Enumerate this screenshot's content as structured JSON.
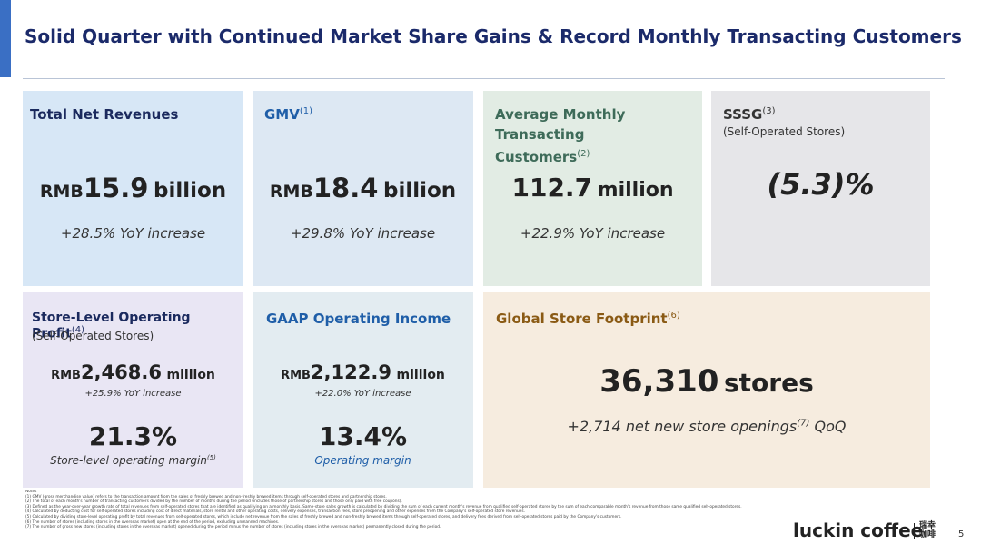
{
  "header": {
    "title": "Solid Quarter with Continued Market Share Gains & Record Monthly Transacting Customers"
  },
  "cards": [
    {
      "title": "Total Net Revenues",
      "value": {
        "prefix": "RMB",
        "number": "15.9",
        "unit": "billion"
      },
      "change": "+28.5% YoY increase"
    },
    {
      "title": "GMV",
      "note": "(1)",
      "value": {
        "prefix": "RMB",
        "number": "18.4",
        "unit": "billion"
      },
      "change": "+29.8% YoY increase"
    },
    {
      "title": "Average Monthly Transacting Customers",
      "note": "(2)",
      "value": {
        "number": "112.7",
        "unit": "million"
      },
      "change": "+22.9% YoY increase"
    },
    {
      "title": "SSSG",
      "note": "(3)",
      "subtitle": "(Self-Operated Stores)",
      "value": {
        "number": "(5.3)%"
      }
    },
    {
      "title": "Store-Level Operating Profit",
      "note": "(4)",
      "subtitle": "(Self-Operated Stores)",
      "value": {
        "prefix": "RMB",
        "number": "2,468.6",
        "unit": "million"
      },
      "change": "+25.9% YoY increase",
      "margin": {
        "value": "21.3%",
        "label": "Store-level operating margin",
        "note": "(5)"
      }
    },
    {
      "title": "GAAP Operating Income",
      "value": {
        "prefix": "RMB",
        "number": "2,122.9",
        "unit": "million"
      },
      "change": "+22.0% YoY increase",
      "margin": {
        "value": "13.4%",
        "label": "Operating margin"
      }
    },
    {
      "title": "Global Store Footprint",
      "note": "(6)",
      "value": {
        "number": "36,310",
        "unit": "stores"
      },
      "change": {
        "before": "+2,714 net new store openings",
        "note": "(7)",
        "after": "QoQ"
      }
    }
  ],
  "notes": {
    "heading": "Notes",
    "items": [
      "(1)   GMV (gross merchandise value) refers to the transaction amount from the sales of freshly brewed and non-freshly brewed items through self-operated stores and partnership stores.",
      "(2)   The total of each month's number of transacting customers divided by the number of months during the period (includes those of partnership stores and those only paid with free coupons).",
      "(3)   Defined as the year-over-year growth rate of total revenues from self-operated stores that are identified as qualifying on a monthly basis. Same-store sales growth is calculated by dividing the sum of each current month's revenue from qualified self-operated stores by the sum of each comparable month's revenue from those same qualified self-operated stores.",
      "(4)   Calculated by deducting cost for self-operated stores including cost of direct materials, store rental and other operating costs, delivery expenses, transaction fees, store preopening and other expenses from the Company's self-operated store revenues.",
      "(5)   Calculated by dividing store-level operating profit by total revenues from self-operated stores, which include net revenue from the sales of freshly brewed and non-freshly brewed items through self-operated stores, and delivery fees derived from self-operated stores paid by the Company's customers.",
      "(6)   The number of stores (including stores in the overseas market) open at the end of the period, excluding unmanned machines.",
      "(7)   The number of gross new stores (including stores in the overseas market) opened during the period minus the number of stores (including stores in the overseas market) permanently closed during the period."
    ]
  },
  "footer": {
    "brand": "luckin coffee",
    "brand_cn": "瑞幸咖啡",
    "page": "5"
  }
}
